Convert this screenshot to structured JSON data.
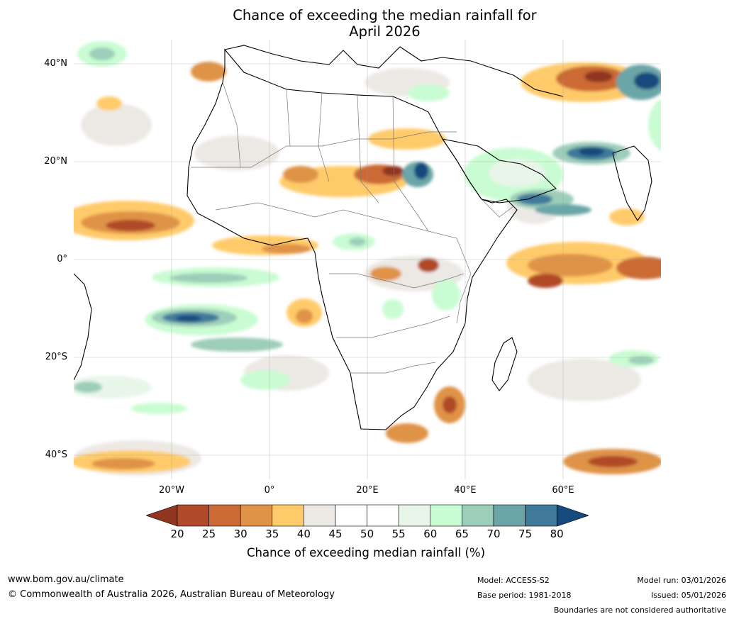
{
  "title": {
    "line1": "Chance of exceeding the median rainfall for",
    "line2": "April 2026"
  },
  "map": {
    "lat_labels": [
      "40°N",
      "20°N",
      "0°",
      "20°S",
      "40°S"
    ],
    "lon_labels": [
      "20°W",
      "0°",
      "20°E",
      "40°E",
      "60°E"
    ],
    "lon_extent": [
      -40,
      80
    ],
    "lat_extent": [
      -45,
      45
    ]
  },
  "colorbar": {
    "title": "Chance of exceeding median rainfall (%)",
    "ticks": [
      "20",
      "25",
      "30",
      "35",
      "40",
      "45",
      "50",
      "55",
      "60",
      "65",
      "70",
      "75",
      "80"
    ],
    "colors": [
      "#8f3520",
      "#b04a28",
      "#cb6a34",
      "#df9347",
      "#ffcb6a",
      "#ece9e4",
      "#ffffff",
      "#ffffff",
      "#e8f6e9",
      "#c9fcd2",
      "#9dceb9",
      "#6ba5a8",
      "#3f7a9a",
      "#154a7c"
    ]
  },
  "footer": {
    "url": "www.bom.gov.au/climate",
    "copyright": "© Commonwealth of Australia 2026, Australian Bureau of Meteorology",
    "model": "Model: ACCESS-S2",
    "base_period": "Base period: 1981-2018",
    "model_run": "Model run: 03/01/2026",
    "issued": "Issued: 05/01/2026",
    "disclaimer": "Boundaries are not considered authoritative"
  }
}
